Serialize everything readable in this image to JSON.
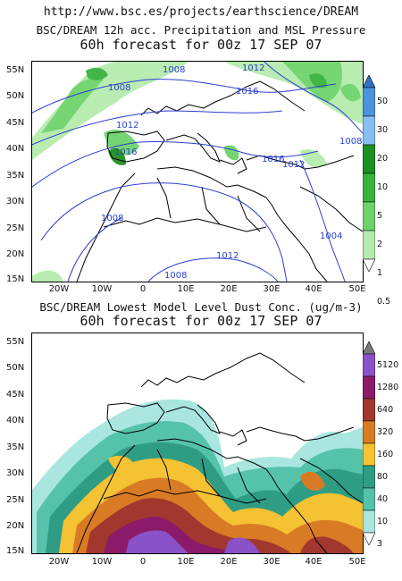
{
  "url": "http://www.bsc.es/projects/earthscience/DREAM",
  "panel1": {
    "title": "BSC/DREAM 12h acc. Precipitation and MSL Pressure",
    "subtitle": "60h forecast for 00z 17 SEP 07",
    "lat_ticks": [
      "55N",
      "50N",
      "45N",
      "40N",
      "35N",
      "30N",
      "25N",
      "20N",
      "15N"
    ],
    "lon_ticks": [
      "20W",
      "10W",
      "0",
      "10E",
      "20E",
      "30E",
      "40E",
      "50E"
    ],
    "isobar_labels": [
      "1008",
      "1012",
      "1008",
      "1016",
      "1012",
      "1016",
      "1016",
      "1012",
      "1008",
      "1012",
      "1008",
      "1004",
      "1008",
      "1008"
    ],
    "colorbar_levels": [
      "50",
      "30",
      "20",
      "10",
      "5",
      "2",
      "1",
      "0.5"
    ],
    "colorbar_colors": [
      "#2f6fc4",
      "#4c92dc",
      "#86bff0",
      "#1d8f23",
      "#38b33e",
      "#6fd36c",
      "#b5ebad",
      "#ffffff"
    ]
  },
  "panel2": {
    "title": "BSC/DREAM Lowest Model Level Dust Conc. (ug/m-3)",
    "subtitle": "60h forecast for 00z 17 SEP 07",
    "lat_ticks": [
      "55N",
      "50N",
      "45N",
      "40N",
      "35N",
      "30N",
      "25N",
      "20N",
      "15N"
    ],
    "lon_ticks": [
      "20W",
      "10W",
      "0",
      "10E",
      "20E",
      "30E",
      "40E",
      "50E"
    ],
    "colorbar_levels": [
      "5120",
      "1280",
      "640",
      "320",
      "160",
      "80",
      "40",
      "10",
      "3"
    ],
    "colorbar_colors": [
      "#7a7a7a",
      "#8a52c8",
      "#8b1a6b",
      "#a1372e",
      "#d97b25",
      "#f4c233",
      "#2e9d84",
      "#55c3a9",
      "#a9e6e0",
      "#ffffff"
    ]
  }
}
